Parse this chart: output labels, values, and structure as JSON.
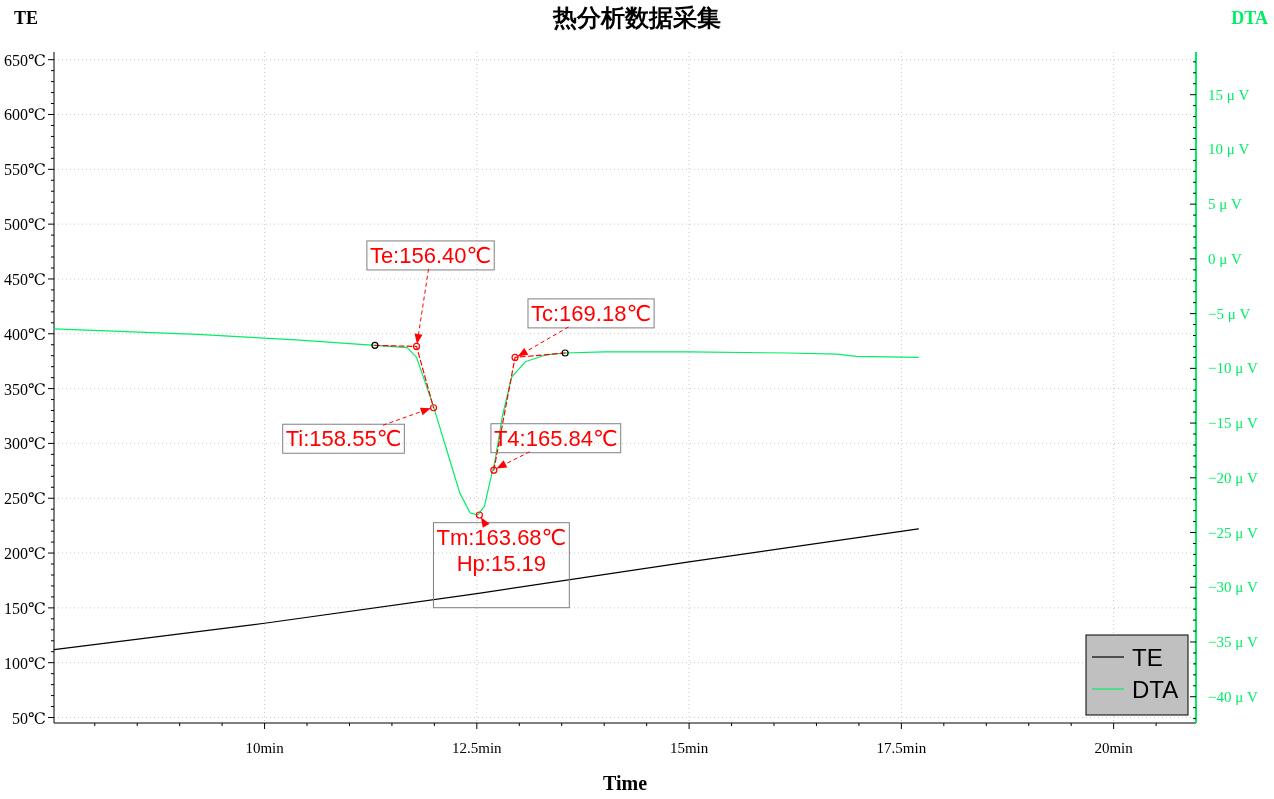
{
  "chart_data": {
    "type": "line",
    "title": "热分析数据采集",
    "xlabel": "Time",
    "ylabel": "TE",
    "y2label": "DTA",
    "xlim": [
      7.52,
      20.97
    ],
    "xticks": [
      {
        "value": 10,
        "label": "10min"
      },
      {
        "value": 12.5,
        "label": "12.5min"
      },
      {
        "value": 15,
        "label": "15min"
      },
      {
        "value": 17.5,
        "label": "17.5min"
      },
      {
        "value": 20,
        "label": "20min"
      }
    ],
    "ylim": [
      45,
      657
    ],
    "yticks": [
      {
        "value": 50,
        "label": "50℃"
      },
      {
        "value": 100,
        "label": "100℃"
      },
      {
        "value": 150,
        "label": "150℃"
      },
      {
        "value": 200,
        "label": "200℃"
      },
      {
        "value": 250,
        "label": "250℃"
      },
      {
        "value": 300,
        "label": "300℃"
      },
      {
        "value": 350,
        "label": "350℃"
      },
      {
        "value": 400,
        "label": "400℃"
      },
      {
        "value": 450,
        "label": "450℃"
      },
      {
        "value": 500,
        "label": "500℃"
      },
      {
        "value": 550,
        "label": "550℃"
      },
      {
        "value": 600,
        "label": "600℃"
      },
      {
        "value": 650,
        "label": "650℃"
      }
    ],
    "y2lim": [
      -42.4,
      18.9
    ],
    "y2ticks": [
      {
        "value": -40,
        "label": "−40 μ V"
      },
      {
        "value": -35,
        "label": "−35 μ V"
      },
      {
        "value": -30,
        "label": "−30 μ V"
      },
      {
        "value": -25,
        "label": "−25 μ V"
      },
      {
        "value": -20,
        "label": "−20 μ V"
      },
      {
        "value": -15,
        "label": "−15 μ V"
      },
      {
        "value": -10,
        "label": "−10 μ V"
      },
      {
        "value": -5,
        "label": "−5 μ V"
      },
      {
        "value": 0,
        "label": "0 μ V"
      },
      {
        "value": 5,
        "label": "5 μ V"
      },
      {
        "value": 10,
        "label": "10 μ V"
      },
      {
        "value": 15,
        "label": "15 μ V"
      }
    ],
    "grid": true,
    "legend": "bottom right",
    "series": [
      {
        "name": "TE",
        "color": "#000000",
        "x": [
          7.52,
          10,
          12.5,
          15,
          17.7
        ],
        "values": [
          112,
          136,
          163,
          192,
          222
        ]
      },
      {
        "name": "DTA",
        "color": "#00ee66",
        "axis": "y2",
        "x": [
          7.52,
          9.21,
          10.37,
          11.3,
          11.68,
          11.79,
          11.99,
          12.19,
          12.3,
          12.42,
          12.51,
          12.59,
          12.65,
          12.71,
          12.8,
          12.91,
          13.07,
          13.3,
          13.53,
          14,
          15,
          16.16,
          16.74,
          16.97,
          17.7
        ],
        "values": [
          -6.4,
          -6.9,
          -7.4,
          -7.9,
          -8.1,
          -9.0,
          -13.5,
          -18.6,
          -21.4,
          -23.2,
          -23.4,
          -22.6,
          -20.5,
          -18.6,
          -14.4,
          -10.8,
          -9.4,
          -8.8,
          -8.6,
          -8.5,
          -8.5,
          -8.6,
          -8.7,
          -8.9,
          -9.0
        ]
      },
      {
        "type": "line",
        "color": "#ff0000",
        "axis": "y2",
        "line_style": "dashed",
        "x": [
          11.3,
          11.79,
          11.99
        ],
        "values": [
          -7.9,
          -8.0,
          -13.6
        ]
      },
      {
        "type": "line",
        "color": "#ff0000",
        "axis": "y2",
        "line_style": "dashed",
        "x": [
          12.7,
          12.95,
          13.54
        ],
        "values": [
          -19.3,
          -9.0,
          -8.6
        ]
      },
      {
        "type": "scatter",
        "color": "#000000",
        "axis": "y2",
        "marker": "circle",
        "x": [
          11.3,
          13.54
        ],
        "values": [
          -7.9,
          -8.6
        ]
      },
      {
        "type": "scatter",
        "color": "#ff0000",
        "axis": "y2",
        "marker": "circle",
        "x": [
          11.79,
          11.99,
          12.53,
          12.7,
          12.95
        ],
        "values": [
          -8.0,
          -13.6,
          -23.4,
          -19.3,
          -9.0
        ]
      }
    ],
    "annotations": [
      {
        "text": "Te:156.40℃",
        "x": 11.79,
        "y": 388
      },
      {
        "text": "Ti:158.55℃",
        "x": 11.99,
        "y": 333
      },
      {
        "text": "Tm:163.68℃\nHp:15.19",
        "x": 12.53,
        "y": 235
      },
      {
        "text": "T4:165.84℃",
        "x": 12.7,
        "y": 276
      },
      {
        "text": "Tc:169.18℃",
        "x": 12.95,
        "y": 378
      }
    ]
  }
}
